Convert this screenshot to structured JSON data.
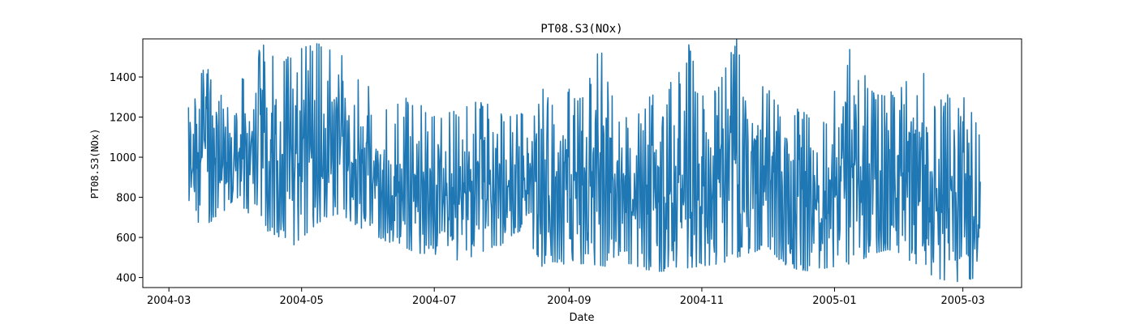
{
  "chart_data": {
    "type": "line",
    "title": "PT08.S3(NOx)",
    "xlabel": "Date",
    "ylabel": "PT08.S3(NOx)",
    "x_tick_labels": [
      "2004-03",
      "2004-05",
      "2004-07",
      "2004-09",
      "2004-11",
      "2005-01",
      "2005-03"
    ],
    "x_ticks": [
      "2004-03-01",
      "2004-05-01",
      "2004-07-01",
      "2004-09-01",
      "2004-11-01",
      "2005-01-01",
      "2005-03-01"
    ],
    "xlim": [
      "2004-02-18",
      "2005-03-28"
    ],
    "y_ticks": [
      400,
      600,
      800,
      1000,
      1200,
      1400
    ],
    "ylim": [
      350,
      1590
    ],
    "grid": false,
    "color": "#1f77b4",
    "series": [
      {
        "x": [
          "2004-03-10",
          "2004-03-17",
          "2004-03-24",
          "2004-03-31",
          "2004-04-07",
          "2004-04-14",
          "2004-04-21",
          "2004-04-28",
          "2004-05-05",
          "2004-05-12",
          "2004-05-19",
          "2004-05-26",
          "2004-06-02",
          "2004-06-09",
          "2004-06-16",
          "2004-06-23",
          "2004-06-30",
          "2004-07-07",
          "2004-07-14",
          "2004-07-21",
          "2004-07-28",
          "2004-08-04",
          "2004-08-11",
          "2004-08-18",
          "2004-08-25",
          "2004-09-01",
          "2004-09-08",
          "2004-09-15",
          "2004-09-22",
          "2004-09-29",
          "2004-10-06",
          "2004-10-13",
          "2004-10-20",
          "2004-10-27",
          "2004-11-03",
          "2004-11-10",
          "2004-11-17",
          "2004-11-24",
          "2004-12-01",
          "2004-12-08",
          "2004-12-15",
          "2004-12-22",
          "2004-12-29",
          "2005-01-05",
          "2005-01-12",
          "2005-01-19",
          "2005-01-26",
          "2005-02-02",
          "2005-02-09",
          "2005-02-16",
          "2005-02-23",
          "2005-03-02",
          "2005-03-09"
        ],
        "min": [
          740,
          640,
          720,
          760,
          700,
          640,
          600,
          560,
          640,
          700,
          720,
          660,
          620,
          580,
          560,
          520,
          520,
          500,
          480,
          500,
          520,
          600,
          640,
          450,
          480,
          460,
          470,
          460,
          450,
          470,
          440,
          430,
          440,
          450,
          460,
          470,
          500,
          520,
          560,
          470,
          440,
          430,
          450,
          460,
          480,
          520,
          540,
          500,
          460,
          400,
          380,
          380,
          410
        ],
        "max": [
          1320,
          1480,
          1340,
          1320,
          1460,
          1580,
          1500,
          1520,
          1570,
          1560,
          1530,
          1400,
          1380,
          1240,
          1300,
          1280,
          1200,
          1220,
          1240,
          1280,
          1260,
          1200,
          1220,
          1370,
          1260,
          1360,
          1290,
          1600,
          1260,
          1200,
          1260,
          1400,
          1380,
          1590,
          1240,
          1420,
          1590,
          1420,
          1340,
          1280,
          1240,
          1200,
          1180,
          1580,
          1480,
          1320,
          1320,
          1360,
          1480,
          1260,
          1320,
          1300,
          1120
        ]
      }
    ]
  }
}
